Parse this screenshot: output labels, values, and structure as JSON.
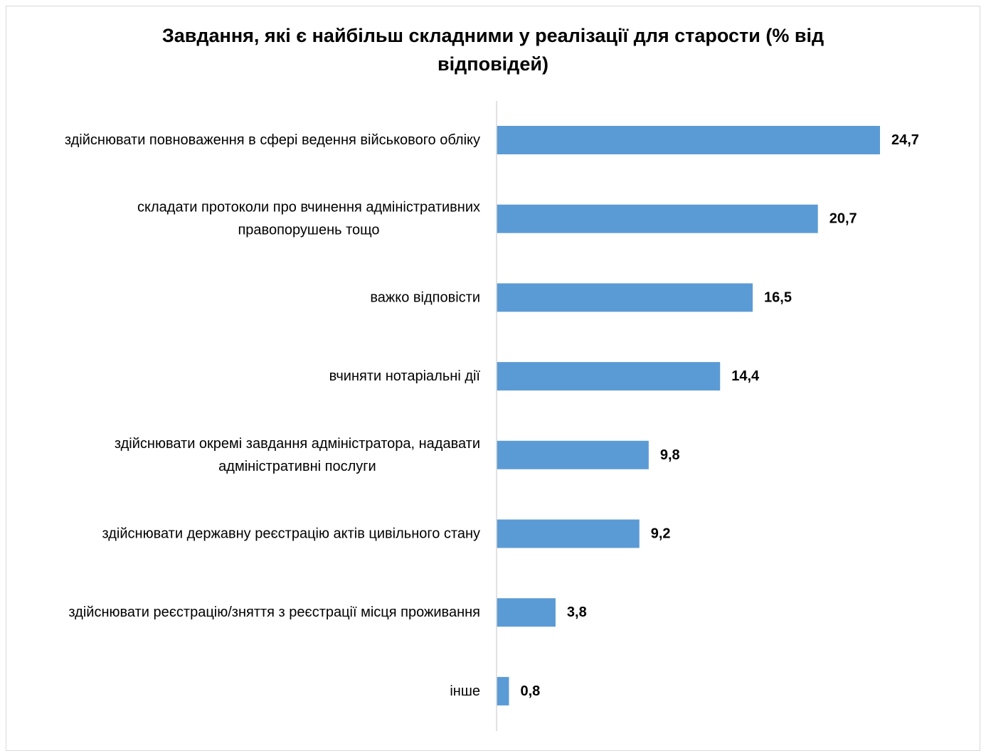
{
  "chart_data": {
    "type": "bar",
    "orientation": "horizontal",
    "title_lines": [
      "Завдання, які є найбільш складними у реалізації для старости (% від",
      "відповідей)"
    ],
    "categories": [
      [
        "здійснювати повноваження в сфері ведення військового обліку"
      ],
      [
        "складати протоколи про вчинення адміністративних",
        "правопорушень тощо"
      ],
      [
        "важко відповісти"
      ],
      [
        "вчиняти нотаріальні дії"
      ],
      [
        "здійснювати окремі завдання адміністратора, надавати",
        "адміністративні послуги"
      ],
      [
        "здійснювати державну реєстрацію актів цивільного стану"
      ],
      [
        "здійснювати реєстрацію/зняття з реєстрації місця проживання"
      ],
      [
        "інше"
      ]
    ],
    "values": [
      24.7,
      20.7,
      16.5,
      14.4,
      9.8,
      9.2,
      3.8,
      0.8
    ],
    "value_labels": [
      "24,7",
      "20,7",
      "16,5",
      "14,4",
      "9,8",
      "9,2",
      "3,8",
      "0,8"
    ],
    "xlim": [
      0,
      30
    ],
    "grid": false,
    "legend": "none",
    "bar_color": "#5b9bd5",
    "axis_color": "#d9d9d9"
  }
}
